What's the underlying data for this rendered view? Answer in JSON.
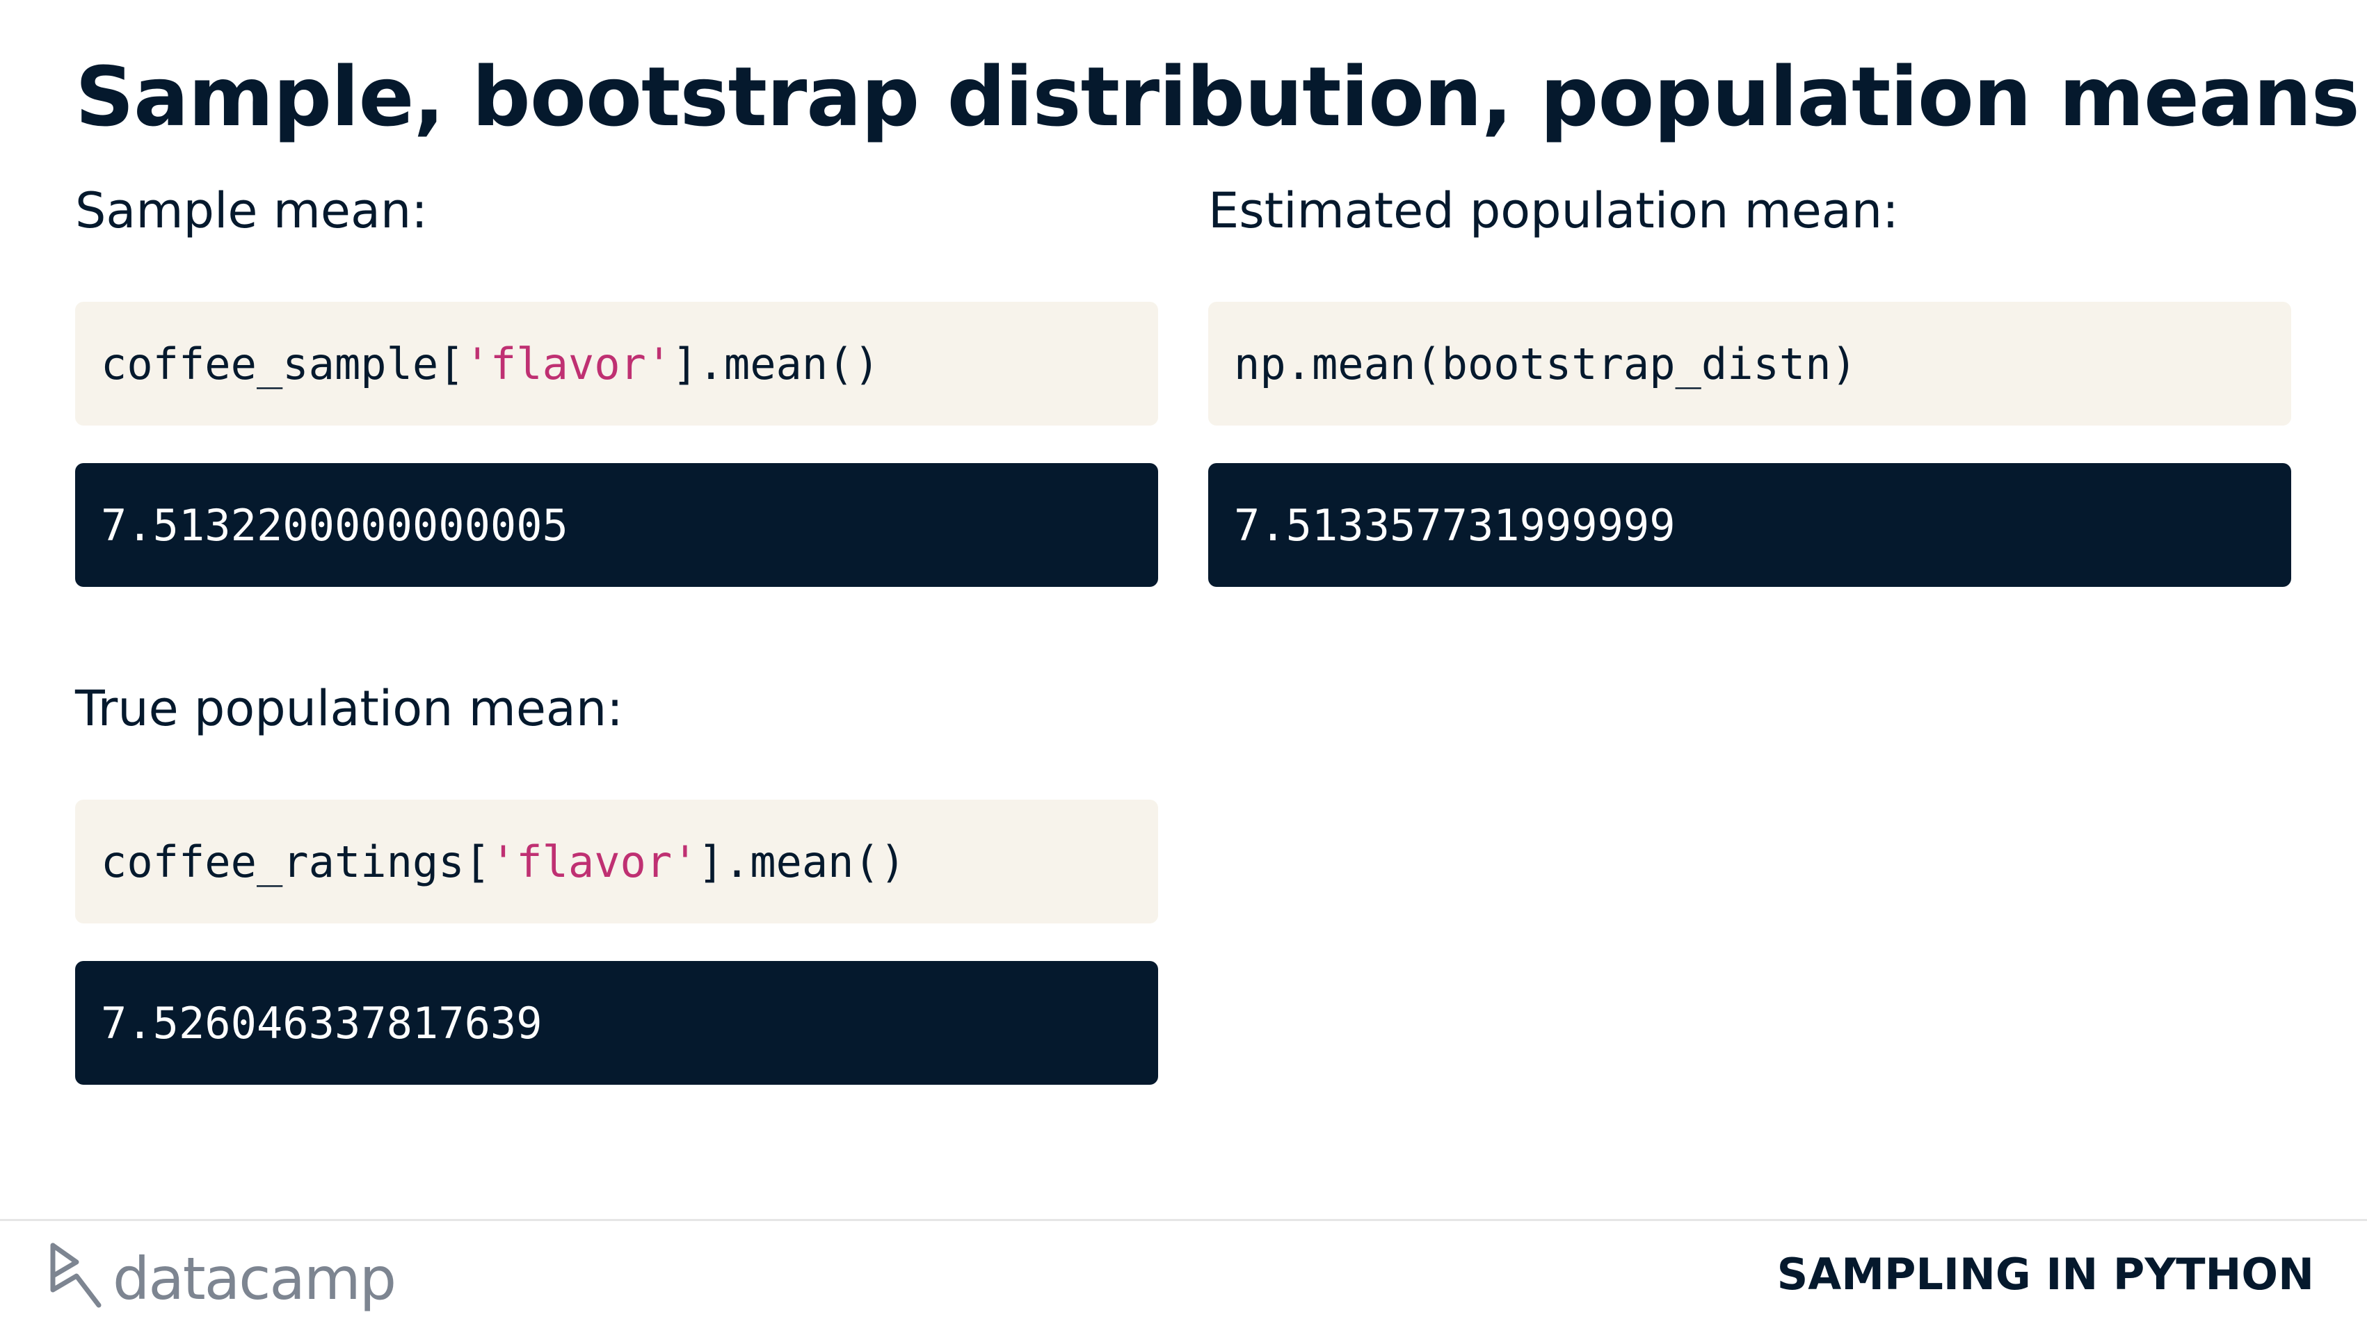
{
  "header": {
    "title": "Sample, bootstrap distribution, population means"
  },
  "sections": [
    {
      "label": "Sample mean:",
      "code": [
        "coffee_sample[",
        "'flavor'",
        "].mean()"
      ],
      "output": "7.5132200000000005"
    },
    {
      "label": "Estimated population mean:",
      "code": [
        "np.mean(bootstrap_distn)"
      ],
      "output": "7.513357731999999"
    },
    {
      "label": "True population mean:",
      "code": [
        "coffee_ratings[",
        "'flavor'",
        "].mean()"
      ],
      "output": "7.526046337817639"
    }
  ],
  "footer": {
    "brand": "datacamp",
    "course": "SAMPLING IN PYTHON"
  }
}
